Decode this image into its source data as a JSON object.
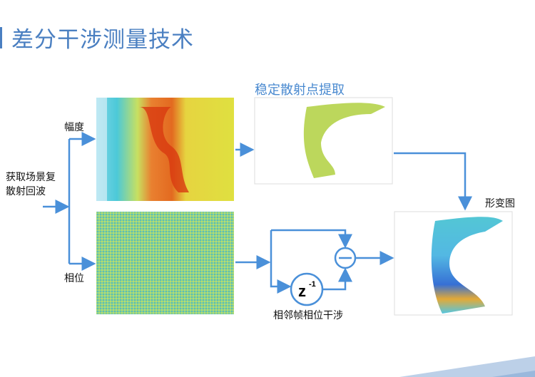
{
  "title": "差分干涉测量技术",
  "labels": {
    "input": "获取场景复\n散射回波",
    "input_line1": "获取场景复",
    "input_line2": "散射回波",
    "amplitude": "幅度",
    "phase": "相位",
    "stable_points": "稳定散射点提取",
    "deformation": "形变图",
    "interference": "相邻帧相位干涉",
    "delay": "z",
    "delay_exp": "-1"
  },
  "colors": {
    "accent": "#4a7fc1",
    "arrow": "#4a90d9",
    "footer": "#bcd0e8"
  }
}
